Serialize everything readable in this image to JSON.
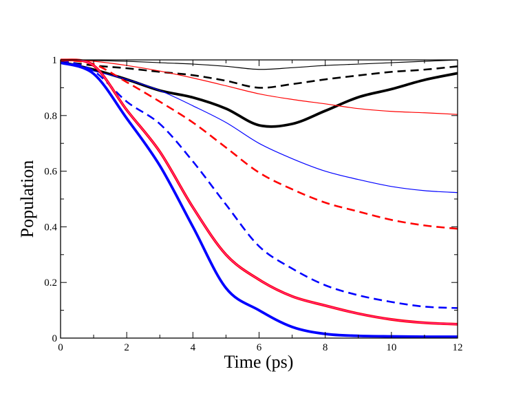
{
  "chart_data": {
    "type": "line",
    "title": "",
    "xlabel": "Time (ps)",
    "ylabel": "Population",
    "xlim": [
      0,
      12
    ],
    "ylim": [
      0,
      1
    ],
    "grid": false,
    "x_ticks": [
      "0",
      "2",
      "4",
      "6",
      "8",
      "10",
      "12"
    ],
    "y_ticks": [
      "0",
      "0.2",
      "0.4",
      "0.6",
      "0.8",
      "1"
    ],
    "x": [
      0,
      1,
      2,
      3,
      4,
      5,
      6,
      7,
      8,
      9,
      10,
      11,
      12
    ],
    "series": [
      {
        "name": "black-thin",
        "color": "#000000",
        "style": "solid",
        "weight": "thin",
        "values": [
          1.0,
          0.998,
          0.995,
          0.99,
          0.985,
          0.977,
          0.966,
          0.972,
          0.98,
          0.985,
          0.99,
          0.995,
          1.0
        ]
      },
      {
        "name": "black-dashed",
        "color": "#000000",
        "style": "dashed",
        "weight": "medium",
        "values": [
          0.995,
          0.98,
          0.97,
          0.957,
          0.945,
          0.925,
          0.9,
          0.913,
          0.93,
          0.944,
          0.957,
          0.965,
          0.977
        ]
      },
      {
        "name": "black-thick",
        "color": "#000000",
        "style": "solid",
        "weight": "thick",
        "values": [
          0.993,
          0.965,
          0.93,
          0.89,
          0.865,
          0.825,
          0.765,
          0.77,
          0.817,
          0.866,
          0.895,
          0.928,
          0.952
        ]
      },
      {
        "name": "red-thin",
        "color": "#ff0000",
        "style": "solid",
        "weight": "thin",
        "values": [
          1.0,
          0.995,
          0.98,
          0.96,
          0.935,
          0.907,
          0.878,
          0.858,
          0.842,
          0.825,
          0.815,
          0.81,
          0.804
        ]
      },
      {
        "name": "red-dashed",
        "color": "#ff0000",
        "style": "dashed",
        "weight": "medium",
        "values": [
          1.0,
          0.985,
          0.92,
          0.85,
          0.775,
          0.685,
          0.595,
          0.535,
          0.487,
          0.455,
          0.425,
          0.405,
          0.393
        ]
      },
      {
        "name": "blue-thin",
        "color": "#0000ff",
        "style": "solid",
        "weight": "thin",
        "values": [
          0.99,
          0.96,
          0.93,
          0.89,
          0.835,
          0.775,
          0.7,
          0.645,
          0.6,
          0.57,
          0.545,
          0.53,
          0.523
        ]
      },
      {
        "name": "blue-dashed",
        "color": "#0000ff",
        "style": "dashed",
        "weight": "medium",
        "values": [
          1.0,
          0.96,
          0.85,
          0.77,
          0.635,
          0.48,
          0.33,
          0.25,
          0.19,
          0.154,
          0.13,
          0.113,
          0.108
        ]
      },
      {
        "name": "red-thick",
        "color": "#ff0000",
        "style": "solid",
        "weight": "thick",
        "values": [
          1.0,
          0.98,
          0.82,
          0.67,
          0.47,
          0.3,
          0.21,
          0.15,
          0.117,
          0.088,
          0.067,
          0.055,
          0.05
        ]
      },
      {
        "name": "blue-thick",
        "color": "#0000ff",
        "style": "solid",
        "weight": "thick",
        "values": [
          0.99,
          0.95,
          0.79,
          0.62,
          0.4,
          0.18,
          0.1,
          0.04,
          0.015,
          0.008,
          0.006,
          0.005,
          0.005
        ]
      }
    ]
  }
}
